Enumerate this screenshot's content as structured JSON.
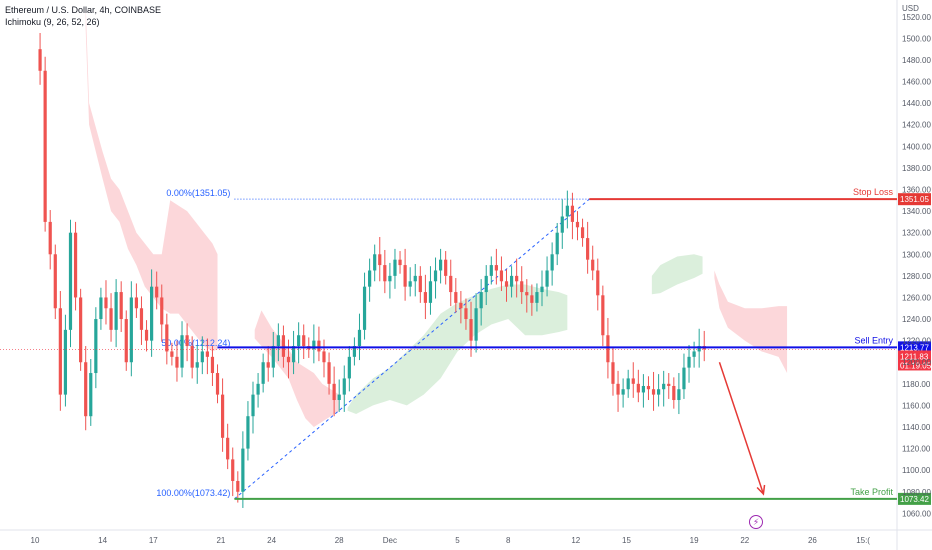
{
  "header": {
    "symbol_line": "Ethereum / U.S. Dollar, 4h, COINBASE",
    "indicator_line": "Ichimoku (9, 26, 52, 26)"
  },
  "chart_data": {
    "type": "candlestick",
    "currency_label": "USD",
    "ylim": [
      1052,
      1530
    ],
    "y_ticks": [
      1520,
      1500,
      1480,
      1460,
      1440,
      1420,
      1400,
      1380,
      1360,
      1340,
      1320,
      1300,
      1280,
      1260,
      1240,
      1220,
      1200,
      1180,
      1160,
      1140,
      1120,
      1100,
      1080,
      1060
    ],
    "y_tick_labels": [
      "1520.00",
      "1500.00",
      "1480.00",
      "1460.00",
      "1440.00",
      "1420.00",
      "1400.00",
      "1380.00",
      "1360.00",
      "1340.00",
      "1320.00",
      "1300.00",
      "1280.00",
      "1260.00",
      "1240.00",
      "1220.00",
      "1200.00",
      "1180.00",
      "1160.00",
      "1140.00",
      "1120.00",
      "1100.00",
      "1080.00",
      "1060.00"
    ],
    "x_ticks": [
      {
        "label": "10",
        "day": 0
      },
      {
        "label": "14",
        "day": 4
      },
      {
        "label": "17",
        "day": 7
      },
      {
        "label": "21",
        "day": 11
      },
      {
        "label": "24",
        "day": 14
      },
      {
        "label": "28",
        "day": 18
      },
      {
        "label": "Dec",
        "day": 21
      },
      {
        "label": "5",
        "day": 25
      },
      {
        "label": "8",
        "day": 28
      },
      {
        "label": "12",
        "day": 32
      },
      {
        "label": "15",
        "day": 35
      },
      {
        "label": "19",
        "day": 39
      },
      {
        "label": "22",
        "day": 42
      },
      {
        "label": "26",
        "day": 46
      },
      {
        "label": "15:( ",
        "day": 49
      }
    ],
    "levels": {
      "stop_loss": {
        "label": "Stop Loss",
        "value": 1351.05,
        "tag": "1351.05",
        "color": "#e53935"
      },
      "sell_entry": {
        "label": "Sell Entry",
        "value": 1213.77,
        "tag": "1213.77",
        "color": "#1010e6"
      },
      "take_profit": {
        "label": "Take Profit",
        "value": 1073.42,
        "tag": "1073.42",
        "color": "#43a047"
      },
      "current_price": {
        "value": 1211.83,
        "tag": "1211.83",
        "countdown": "01:19:05",
        "color": "#f23645"
      }
    },
    "fibonacci": {
      "level_0": {
        "label": "0.00%(1351.05)",
        "value": 1351.05
      },
      "level_50": {
        "label": "50.00%(1212.24)",
        "value": 1212.24
      },
      "level_100": {
        "label": "100.00%(1073.42)",
        "value": 1073.42
      },
      "start_day": 11.8,
      "end_day": 32.8
    },
    "projection_arrow": {
      "from_day": 40.5,
      "from_value": 1200,
      "to_day": 43.1,
      "to_value": 1078,
      "color": "#e53935"
    },
    "cloud_bearish": [
      [
        3.0,
        1530,
        1508
      ],
      [
        3.2,
        1440,
        1420
      ],
      [
        4.0,
        1395,
        1370
      ],
      [
        4.5,
        1370,
        1340
      ],
      [
        5.0,
        1360,
        1330
      ],
      [
        5.5,
        1340,
        1305
      ],
      [
        6.0,
        1320,
        1290
      ],
      [
        6.5,
        1310,
        1270
      ],
      [
        7.0,
        1300,
        1260
      ],
      [
        7.5,
        1300,
        1250
      ],
      [
        8.0,
        1350,
        1245
      ],
      [
        8.5,
        1345,
        1245
      ],
      [
        9.0,
        1340,
        1235
      ],
      [
        9.5,
        1330,
        1225
      ],
      [
        10.0,
        1320,
        1215
      ],
      [
        10.5,
        1310,
        1210
      ],
      [
        10.8,
        1300,
        1212
      ]
    ],
    "cloud_bearish_2": [
      [
        13.0,
        1230,
        1222
      ],
      [
        13.4,
        1248,
        1215
      ],
      [
        14.0,
        1232,
        1205
      ],
      [
        14.5,
        1222,
        1195
      ],
      [
        15.0,
        1212,
        1185
      ],
      [
        15.5,
        1200,
        1165
      ],
      [
        16.0,
        1195,
        1148
      ],
      [
        16.5,
        1190,
        1140
      ],
      [
        17.0,
        1180,
        1145
      ],
      [
        17.5,
        1175,
        1150
      ],
      [
        18.0,
        1170,
        1155
      ]
    ],
    "cloud_bullish": [
      [
        18.5,
        1158,
        1155
      ],
      [
        19.0,
        1170,
        1152
      ],
      [
        20.0,
        1185,
        1160
      ],
      [
        21.0,
        1195,
        1165
      ],
      [
        22.0,
        1210,
        1160
      ],
      [
        23.0,
        1225,
        1170
      ],
      [
        24.0,
        1245,
        1185
      ],
      [
        25.0,
        1255,
        1210
      ],
      [
        26.0,
        1262,
        1225
      ],
      [
        27.0,
        1268,
        1235
      ],
      [
        28.0,
        1272,
        1240
      ],
      [
        29.0,
        1272,
        1225
      ],
      [
        30.0,
        1268,
        1225
      ],
      [
        31.0,
        1265,
        1228
      ],
      [
        31.5,
        1262,
        1230
      ]
    ],
    "cloud_bullish_2": [
      [
        36.5,
        1280,
        1263
      ],
      [
        37.0,
        1290,
        1264
      ],
      [
        38.0,
        1298,
        1272
      ],
      [
        39.0,
        1300,
        1278
      ],
      [
        39.5,
        1298,
        1282
      ]
    ],
    "cloud_bearish_3": [
      [
        40.2,
        1285,
        1278
      ],
      [
        40.5,
        1272,
        1250
      ],
      [
        41.0,
        1256,
        1232
      ],
      [
        42.0,
        1250,
        1220
      ],
      [
        43.0,
        1250,
        1210
      ],
      [
        44.0,
        1252,
        1205
      ],
      [
        44.5,
        1252,
        1190
      ]
    ],
    "price_path": [
      [
        0.0,
        1490
      ],
      [
        0.3,
        1470
      ],
      [
        0.6,
        1330
      ],
      [
        0.9,
        1300
      ],
      [
        1.2,
        1250
      ],
      [
        1.5,
        1170
      ],
      [
        1.8,
        1230
      ],
      [
        2.1,
        1320
      ],
      [
        2.4,
        1260
      ],
      [
        2.7,
        1200
      ],
      [
        3.0,
        1150
      ],
      [
        3.3,
        1190
      ],
      [
        3.6,
        1240
      ],
      [
        3.9,
        1260
      ],
      [
        4.2,
        1250
      ],
      [
        4.5,
        1230
      ],
      [
        4.8,
        1265
      ],
      [
        5.1,
        1240
      ],
      [
        5.4,
        1200
      ],
      [
        5.7,
        1260
      ],
      [
        6.0,
        1250
      ],
      [
        6.3,
        1230
      ],
      [
        6.6,
        1220
      ],
      [
        6.9,
        1270
      ],
      [
        7.2,
        1260
      ],
      [
        7.5,
        1235
      ],
      [
        7.8,
        1210
      ],
      [
        8.1,
        1205
      ],
      [
        8.4,
        1195
      ],
      [
        8.7,
        1225
      ],
      [
        9.0,
        1215
      ],
      [
        9.3,
        1195
      ],
      [
        9.6,
        1200
      ],
      [
        9.9,
        1210
      ],
      [
        10.2,
        1205
      ],
      [
        10.5,
        1190
      ],
      [
        10.8,
        1170
      ],
      [
        11.1,
        1130
      ],
      [
        11.4,
        1110
      ],
      [
        11.7,
        1090
      ],
      [
        12.0,
        1080
      ],
      [
        12.3,
        1120
      ],
      [
        12.6,
        1150
      ],
      [
        12.9,
        1170
      ],
      [
        13.2,
        1180
      ],
      [
        13.5,
        1200
      ],
      [
        13.8,
        1195
      ],
      [
        14.1,
        1215
      ],
      [
        14.4,
        1225
      ],
      [
        14.7,
        1205
      ],
      [
        15.0,
        1200
      ],
      [
        15.3,
        1215
      ],
      [
        15.6,
        1225
      ],
      [
        15.9,
        1215
      ],
      [
        16.2,
        1212
      ],
      [
        16.5,
        1220
      ],
      [
        16.8,
        1210
      ],
      [
        17.1,
        1200
      ],
      [
        17.4,
        1180
      ],
      [
        17.7,
        1165
      ],
      [
        18.0,
        1170
      ],
      [
        18.3,
        1185
      ],
      [
        18.6,
        1205
      ],
      [
        18.9,
        1215
      ],
      [
        19.2,
        1230
      ],
      [
        19.5,
        1270
      ],
      [
        19.8,
        1285
      ],
      [
        20.1,
        1300
      ],
      [
        20.4,
        1290
      ],
      [
        20.7,
        1275
      ],
      [
        21.0,
        1280
      ],
      [
        21.3,
        1295
      ],
      [
        21.6,
        1290
      ],
      [
        21.9,
        1270
      ],
      [
        22.2,
        1275
      ],
      [
        22.5,
        1280
      ],
      [
        22.8,
        1265
      ],
      [
        23.1,
        1255
      ],
      [
        23.4,
        1275
      ],
      [
        23.7,
        1285
      ],
      [
        24.0,
        1295
      ],
      [
        24.3,
        1280
      ],
      [
        24.6,
        1265
      ],
      [
        24.9,
        1255
      ],
      [
        25.2,
        1250
      ],
      [
        25.5,
        1240
      ],
      [
        25.8,
        1220
      ],
      [
        26.1,
        1250
      ],
      [
        26.4,
        1265
      ],
      [
        26.7,
        1280
      ],
      [
        27.0,
        1290
      ],
      [
        27.3,
        1285
      ],
      [
        27.6,
        1275
      ],
      [
        27.9,
        1270
      ],
      [
        28.2,
        1280
      ],
      [
        28.5,
        1275
      ],
      [
        28.8,
        1265
      ],
      [
        29.1,
        1262
      ],
      [
        29.4,
        1255
      ],
      [
        29.7,
        1265
      ],
      [
        30.0,
        1270
      ],
      [
        30.3,
        1285
      ],
      [
        30.6,
        1300
      ],
      [
        30.9,
        1320
      ],
      [
        31.2,
        1335
      ],
      [
        31.5,
        1345
      ],
      [
        31.8,
        1330
      ],
      [
        32.1,
        1325
      ],
      [
        32.4,
        1315
      ],
      [
        32.7,
        1295
      ],
      [
        33.0,
        1285
      ],
      [
        33.3,
        1262
      ],
      [
        33.6,
        1225
      ],
      [
        33.9,
        1200
      ],
      [
        34.2,
        1180
      ],
      [
        34.5,
        1170
      ],
      [
        34.8,
        1175
      ],
      [
        35.1,
        1185
      ],
      [
        35.4,
        1180
      ],
      [
        35.7,
        1172
      ],
      [
        36.0,
        1178
      ],
      [
        36.3,
        1175
      ],
      [
        36.6,
        1170
      ],
      [
        36.9,
        1175
      ],
      [
        37.2,
        1180
      ],
      [
        37.5,
        1178
      ],
      [
        37.8,
        1165
      ],
      [
        38.1,
        1175
      ],
      [
        38.4,
        1195
      ],
      [
        38.7,
        1205
      ],
      [
        39.0,
        1210
      ],
      [
        39.3,
        1215
      ],
      [
        39.6,
        1212
      ]
    ]
  }
}
